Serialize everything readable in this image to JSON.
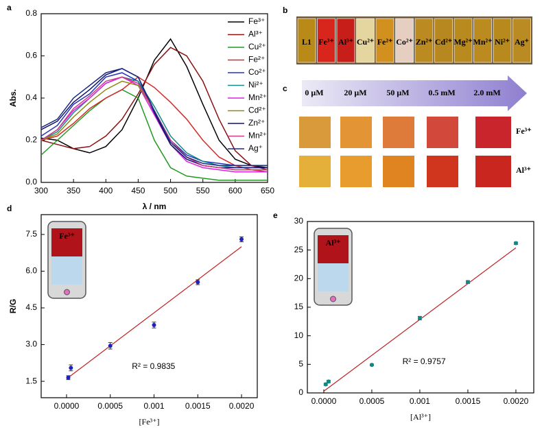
{
  "chart_data": [
    {
      "type": "line",
      "panel_label": "a",
      "xlabel": "λ / nm",
      "ylabel": "Abs.",
      "x": [
        300,
        325,
        350,
        375,
        400,
        425,
        450,
        475,
        500,
        525,
        550,
        575,
        600,
        625,
        650
      ],
      "xlim": [
        300,
        650
      ],
      "xticks": [
        300,
        350,
        400,
        450,
        500,
        550,
        600,
        650
      ],
      "ylim": [
        0,
        0.8
      ],
      "yticks": [
        {
          "value": 0,
          "label": "0.0"
        },
        0.2,
        0.4,
        0.6,
        0.8
      ],
      "legend": "upper right",
      "series": [
        {
          "name": "Fe³⁺",
          "color": "#000000",
          "values": [
            0.21,
            0.2,
            0.16,
            0.14,
            0.17,
            0.25,
            0.4,
            0.58,
            0.68,
            0.55,
            0.37,
            0.2,
            0.11,
            0.08,
            0.07
          ]
        },
        {
          "name": "Al³⁺",
          "color": "#8b1010",
          "values": [
            0.2,
            0.18,
            0.16,
            0.17,
            0.22,
            0.3,
            0.42,
            0.56,
            0.64,
            0.6,
            0.48,
            0.3,
            0.15,
            0.08,
            0.06
          ]
        },
        {
          "name": "Cu²⁺",
          "color": "#1f9a1f",
          "values": [
            0.13,
            0.2,
            0.27,
            0.34,
            0.4,
            0.44,
            0.4,
            0.2,
            0.07,
            0.03,
            0.02,
            0.01,
            0.01,
            0.01,
            0.01
          ]
        },
        {
          "name": "Fe²⁺",
          "color": "#d42a2a",
          "values": [
            0.2,
            0.22,
            0.28,
            0.35,
            0.4,
            0.44,
            0.5,
            0.45,
            0.38,
            0.3,
            0.2,
            0.12,
            0.08,
            0.06,
            0.05
          ]
        },
        {
          "name": "Co²⁺",
          "color": "#2233bb",
          "values": [
            0.22,
            0.27,
            0.37,
            0.42,
            0.5,
            0.52,
            0.48,
            0.33,
            0.2,
            0.13,
            0.1,
            0.09,
            0.08,
            0.08,
            0.08
          ]
        },
        {
          "name": "Ni²⁺",
          "color": "#128a8a",
          "values": [
            0.2,
            0.24,
            0.33,
            0.4,
            0.47,
            0.5,
            0.48,
            0.36,
            0.22,
            0.14,
            0.1,
            0.08,
            0.07,
            0.07,
            0.07
          ]
        },
        {
          "name": "Mn²⁺",
          "color": "#e020e0",
          "values": [
            0.2,
            0.25,
            0.34,
            0.4,
            0.47,
            0.5,
            0.46,
            0.32,
            0.18,
            0.1,
            0.07,
            0.06,
            0.05,
            0.05,
            0.05
          ]
        },
        {
          "name": "Cd²⁺",
          "color": "#8a8a10",
          "values": [
            0.2,
            0.23,
            0.31,
            0.38,
            0.44,
            0.48,
            0.46,
            0.34,
            0.2,
            0.12,
            0.08,
            0.07,
            0.06,
            0.06,
            0.06
          ]
        },
        {
          "name": "Zn²⁺",
          "color": "#101070",
          "values": [
            0.25,
            0.29,
            0.38,
            0.44,
            0.51,
            0.54,
            0.5,
            0.33,
            0.18,
            0.11,
            0.08,
            0.07,
            0.07,
            0.07,
            0.07
          ]
        },
        {
          "name": "Mn²⁺",
          "color": "#d03c8c",
          "values": [
            0.2,
            0.25,
            0.35,
            0.41,
            0.48,
            0.5,
            0.47,
            0.34,
            0.2,
            0.12,
            0.08,
            0.07,
            0.06,
            0.06,
            0.06
          ]
        },
        {
          "name": "Ag⁺",
          "color": "#1a2a80",
          "values": [
            0.26,
            0.3,
            0.4,
            0.46,
            0.52,
            0.54,
            0.5,
            0.34,
            0.19,
            0.12,
            0.09,
            0.08,
            0.08,
            0.08,
            0.08
          ]
        }
      ]
    },
    {
      "type": "scatter",
      "panel_label": "d",
      "xlabel": "[Fe³⁺]",
      "ylabel": "R/G",
      "annotation": "R² = 0.9835",
      "inset_label": "Fe³⁺",
      "x": [
        2e-05,
        5e-05,
        0.0005,
        0.001,
        0.0015,
        0.002
      ],
      "values": [
        1.65,
        2.05,
        2.95,
        3.8,
        5.55,
        7.3
      ],
      "errors": [
        0.08,
        0.12,
        0.13,
        0.12,
        0.1,
        0.1
      ],
      "color": "#2020c0",
      "fit": {
        "x": [
          0,
          0.002
        ],
        "values": [
          1.6,
          7.0
        ],
        "color": "#c02020"
      },
      "xlim": [
        -0.00029,
        0.00218
      ],
      "xticks": [
        {
          "value": 0,
          "label": "0.0000"
        },
        0.0005,
        0.001,
        0.0015,
        {
          "value": 0.002,
          "label": "0.0020"
        }
      ],
      "ylim": [
        0.83,
        8.31
      ],
      "yticks": [
        1.5,
        {
          "value": 3,
          "label": "3.0"
        },
        4.5,
        {
          "value": 6,
          "label": "6.0"
        },
        7.5
      ]
    },
    {
      "type": "scatter",
      "panel_label": "e",
      "xlabel": "[Al³⁺]",
      "annotation": "R² = 0.9757",
      "inset_label": "Al³⁺",
      "x": [
        2e-05,
        5e-05,
        0.0005,
        0.001,
        0.0015,
        0.002
      ],
      "values": [
        1.5,
        2.0,
        4.9,
        13.1,
        19.4,
        26.2
      ],
      "errors": [
        0.2,
        0.2,
        0.15,
        0.3,
        0.25,
        0.2
      ],
      "color": "#108888",
      "fit": {
        "x": [
          0,
          0.002
        ],
        "values": [
          0.3,
          25.4
        ],
        "color": "#c02020"
      },
      "xlim": [
        -0.000171,
        0.002186
      ],
      "xticks": [
        {
          "value": 0,
          "label": "0.0000"
        },
        0.0005,
        0.001,
        0.0015,
        {
          "value": 0.002,
          "label": "0.0020"
        }
      ],
      "ylim": [
        0,
        30
      ],
      "yticks": [
        0,
        5,
        10,
        15,
        20,
        25,
        30
      ]
    }
  ],
  "photos": {
    "b": {
      "panel_label": "b",
      "vials": [
        "L1",
        "Fe³⁺",
        "Al³⁺",
        "Cu²⁺",
        "Fe²⁺",
        "Co²⁺",
        "Zn²⁺",
        "Cd²⁺",
        "Mg²⁺",
        "Mn²⁺",
        "Ni²⁺",
        "Ag⁺"
      ]
    },
    "c": {
      "panel_label": "c",
      "concentrations": [
        "0 μM",
        "20 μM",
        "50 μM",
        "0.5 mM",
        "2.0 mM"
      ],
      "rows": [
        "Fe³⁺",
        "Al³⁺"
      ]
    }
  }
}
